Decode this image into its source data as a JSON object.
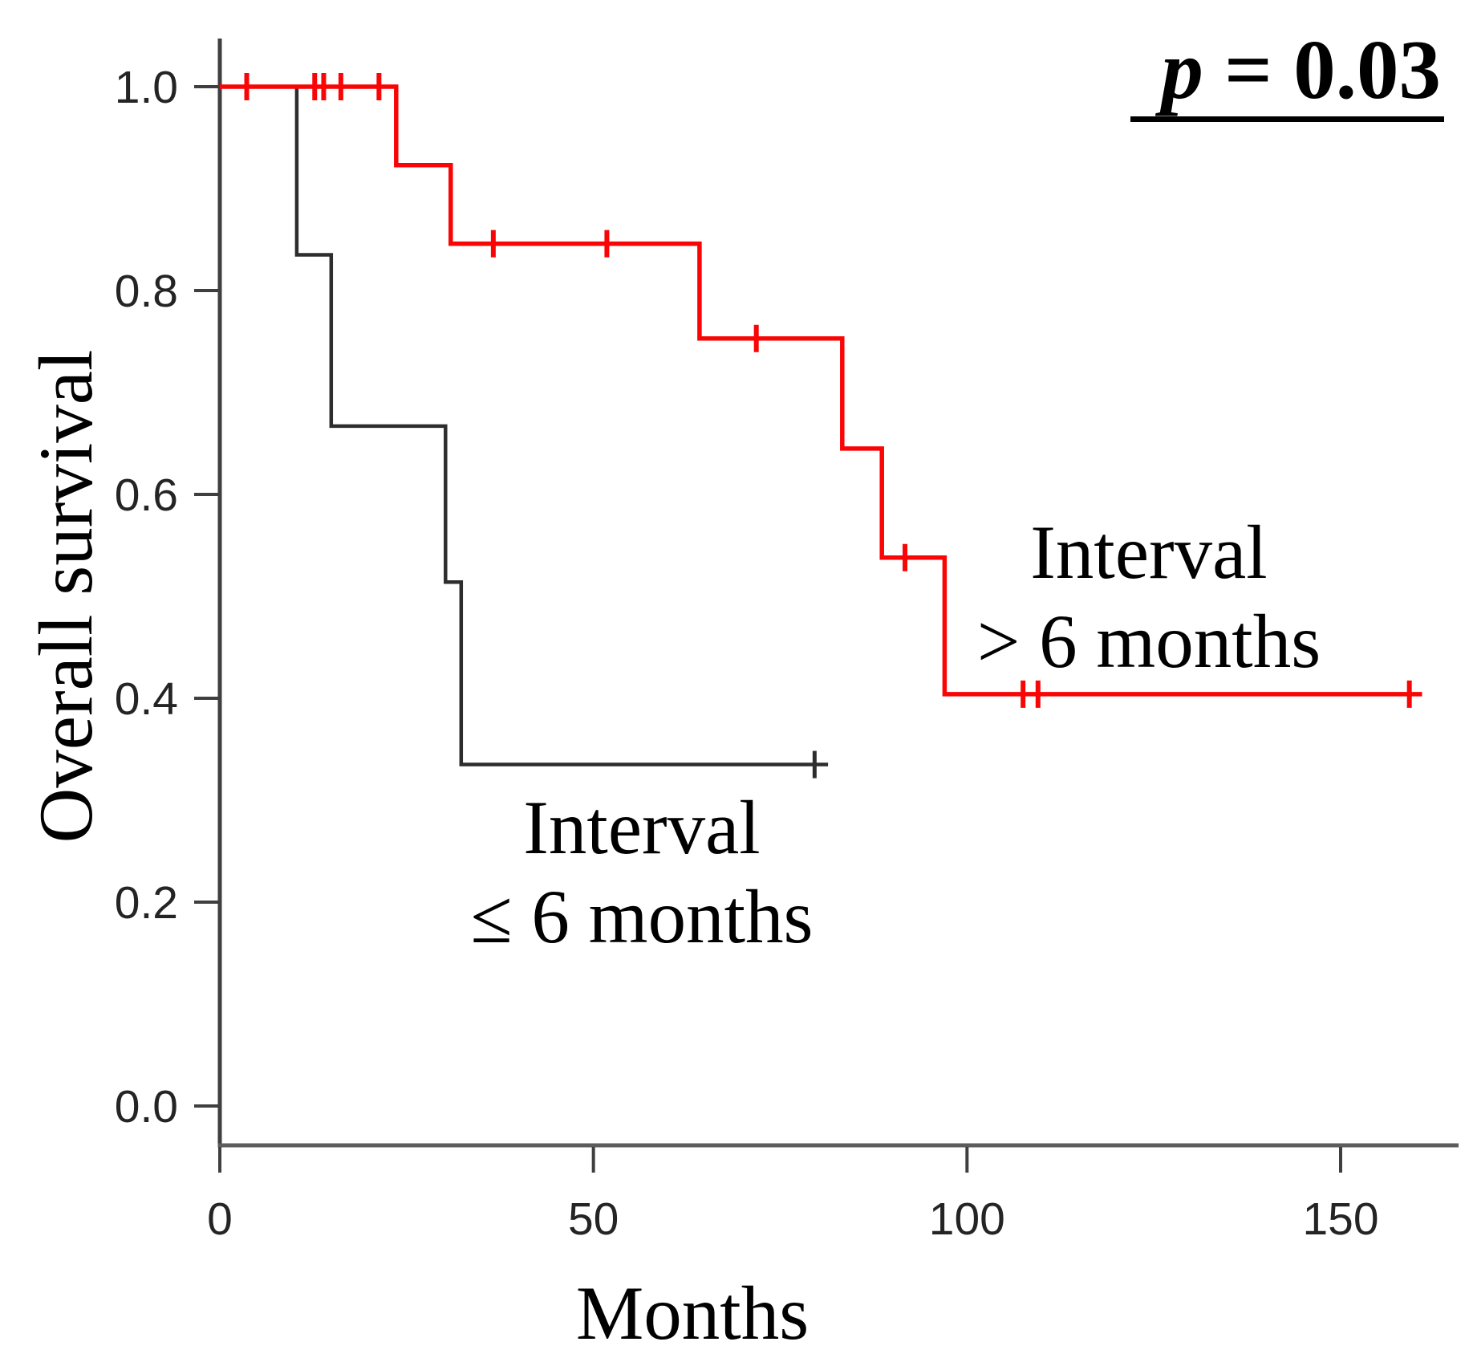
{
  "chart_data": {
    "type": "line",
    "subtype": "kaplan_meier_step",
    "title": "",
    "xlabel": "Months",
    "ylabel": "Overall survival",
    "xlim": [
      0,
      166
    ],
    "ylim": [
      0.0,
      1.0
    ],
    "grid": false,
    "x_tick_labels": [
      "0",
      "50",
      "100",
      "150"
    ],
    "y_tick_labels": [
      "0.0",
      "0.2",
      "0.4",
      "0.6",
      "0.8",
      "1.0"
    ],
    "annotation": {
      "text_italic": "p",
      "text_rest": " = 0.03",
      "position": "top-right"
    },
    "legend_position": "labels-on-plot",
    "series": [
      {
        "name": "Interval > 6 months",
        "label_lines": [
          "Interval",
          "> 6 months"
        ],
        "color": "#f90505",
        "steps": [
          [
            0,
            1.0
          ],
          [
            23.6,
            1.0
          ],
          [
            23.6,
            0.923
          ],
          [
            30.9,
            0.923
          ],
          [
            30.9,
            0.846
          ],
          [
            64.2,
            0.846
          ],
          [
            64.2,
            0.753
          ],
          [
            83.3,
            0.753
          ],
          [
            83.3,
            0.645
          ],
          [
            88.6,
            0.645
          ],
          [
            88.6,
            0.538
          ],
          [
            97.0,
            0.538
          ],
          [
            97.0,
            0.404
          ],
          [
            160.9,
            0.404
          ]
        ],
        "censor_marks": [
          [
            3.6,
            1.0
          ],
          [
            12.7,
            1.0
          ],
          [
            13.9,
            1.0
          ],
          [
            16.2,
            1.0
          ],
          [
            21.3,
            1.0
          ],
          [
            36.6,
            0.846
          ],
          [
            51.8,
            0.846
          ],
          [
            71.8,
            0.753
          ],
          [
            91.7,
            0.538
          ],
          [
            107.5,
            0.404
          ],
          [
            109.5,
            0.404
          ],
          [
            159.2,
            0.404
          ]
        ]
      },
      {
        "name": "Interval ≤ 6 months",
        "label_lines": [
          "Interval",
          "≤ 6 months"
        ],
        "color": "#2d2d2d",
        "steps": [
          [
            0,
            1.0
          ],
          [
            10.3,
            1.0
          ],
          [
            10.3,
            0.835
          ],
          [
            14.9,
            0.835
          ],
          [
            14.9,
            0.667
          ],
          [
            30.2,
            0.667
          ],
          [
            30.2,
            0.514
          ],
          [
            32.3,
            0.514
          ],
          [
            32.3,
            0.335
          ],
          [
            81.4,
            0.335
          ]
        ],
        "censor_marks": [
          [
            79.6,
            0.335
          ]
        ]
      }
    ]
  }
}
